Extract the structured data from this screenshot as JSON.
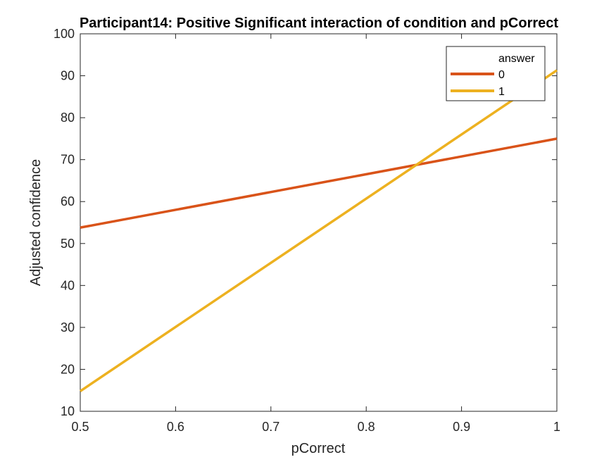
{
  "chart_data": {
    "type": "line",
    "title": "Participant14: Positive Significant interaction of condition and pCorrect",
    "xlabel": "pCorrect",
    "ylabel": "Adjusted confidence",
    "xlim": [
      0.5,
      1
    ],
    "ylim": [
      10,
      100
    ],
    "xticks": [
      "0.5",
      "0.6",
      "0.7",
      "0.8",
      "0.9",
      "1"
    ],
    "yticks": [
      "10",
      "20",
      "30",
      "40",
      "50",
      "60",
      "70",
      "80",
      "90",
      "100"
    ],
    "grid": false,
    "legend": {
      "title": "answer",
      "placement": "top-right"
    },
    "series": [
      {
        "name": "0",
        "color": "#D95319",
        "x": [
          0.5,
          1
        ],
        "y": [
          53.8,
          75.0
        ]
      },
      {
        "name": "1",
        "color": "#EDB120",
        "x": [
          0.5,
          1
        ],
        "y": [
          14.8,
          91.3
        ]
      }
    ]
  }
}
